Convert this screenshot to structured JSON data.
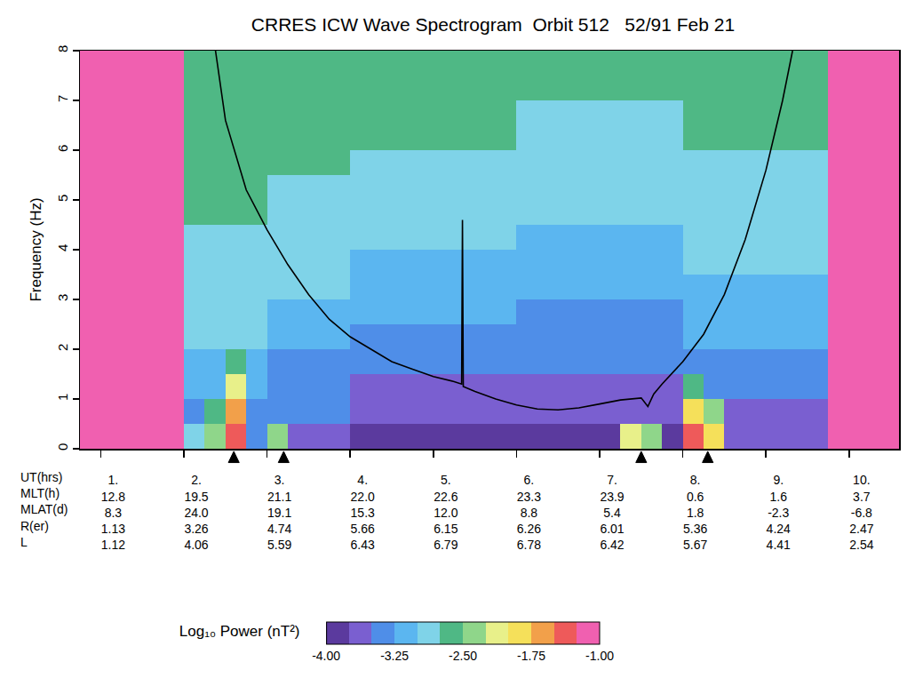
{
  "chart_data": {
    "type": "heatmap",
    "title": "CRRES ICW Wave Spectrogram  Orbit 512   52/91 Feb 21",
    "y_label": "Frequency (Hz)",
    "x": [
      0.875,
      1.125,
      1.375,
      1.625,
      1.875,
      2.125,
      2.375,
      2.625,
      2.875,
      3.125,
      3.375,
      3.625,
      3.875,
      4.125,
      4.375,
      4.625,
      4.875,
      5.125,
      5.375,
      5.625,
      5.875,
      6.125,
      6.375,
      6.625,
      6.875,
      7.125,
      7.375,
      7.625,
      7.875,
      8.125,
      8.375,
      8.625,
      8.875,
      9.125,
      9.375,
      9.625,
      9.875,
      10.125,
      10.375,
      10.625
    ],
    "y": [
      0.25,
      0.75,
      1.25,
      1.75,
      2.25,
      2.75,
      3.25,
      3.75,
      4.25,
      4.75,
      5.25,
      5.75,
      6.25,
      6.75,
      7.25,
      7.75
    ],
    "cells": [
      [
        -1,
        -1,
        -1,
        -1,
        -1,
        -2.8,
        -2.4,
        -1.4,
        -3.4,
        -2.5,
        -3.6,
        -3.6,
        -3.6,
        -3.8,
        -3.8,
        -3.8,
        -3.8,
        -3.8,
        -3.8,
        -3.8,
        -3.8,
        -3.85,
        -3.85,
        -3.85,
        -3.85,
        -3.85,
        -2.2,
        -2.5,
        -3.85,
        -1.5,
        -2.0,
        -3.7,
        -3.7,
        -3.7,
        -3.7,
        -3.7,
        -1,
        -1,
        -1,
        -1
      ],
      [
        -1,
        -1,
        -1,
        -1,
        -1,
        -3.3,
        -2.6,
        -1.6,
        -3.3,
        -3.5,
        -3.5,
        -3.5,
        -3.5,
        -3.7,
        -3.7,
        -3.7,
        -3.7,
        -3.7,
        -3.7,
        -3.7,
        -3.7,
        -3.75,
        -3.75,
        -3.75,
        -3.75,
        -3.75,
        -3.75,
        -3.75,
        -3.75,
        -1.9,
        -2.4,
        -3.55,
        -3.55,
        -3.55,
        -3.55,
        -3.55,
        -1,
        -1,
        -1,
        -1
      ],
      [
        -1,
        -1,
        -1,
        -1,
        -1,
        -3.2,
        -3.2,
        -2.2,
        -3.2,
        -3.4,
        -3.4,
        -3.4,
        -3.4,
        -3.6,
        -3.6,
        -3.6,
        -3.6,
        -3.6,
        -3.6,
        -3.6,
        -3.6,
        -3.65,
        -3.65,
        -3.65,
        -3.65,
        -3.65,
        -3.65,
        -3.65,
        -3.65,
        -2.6,
        -3.45,
        -3.45,
        -3.45,
        -3.45,
        -3.45,
        -3.45,
        -1,
        -1,
        -1,
        -1
      ],
      [
        -1,
        -1,
        -1,
        -1,
        -1,
        -3.1,
        -3.1,
        -2.6,
        -3.1,
        -3.3,
        -3.3,
        -3.3,
        -3.3,
        -3.5,
        -3.5,
        -3.5,
        -3.5,
        -3.5,
        -3.5,
        -3.5,
        -3.5,
        -3.5,
        -3.5,
        -3.5,
        -3.5,
        -3.5,
        -3.5,
        -3.5,
        -3.5,
        -3.35,
        -3.35,
        -3.35,
        -3.35,
        -3.35,
        -3.35,
        -3.35,
        -1,
        -1,
        -1,
        -1
      ],
      [
        -1,
        -1,
        -1,
        -1,
        -1,
        -3.0,
        -3.0,
        -3.0,
        -3.0,
        -3.2,
        -3.2,
        -3.2,
        -3.2,
        -3.35,
        -3.35,
        -3.35,
        -3.35,
        -3.35,
        -3.35,
        -3.35,
        -3.35,
        -3.4,
        -3.4,
        -3.4,
        -3.4,
        -3.4,
        -3.4,
        -3.4,
        -3.4,
        -3.25,
        -3.25,
        -3.25,
        -3.25,
        -3.25,
        -3.25,
        -3.25,
        -1,
        -1,
        -1,
        -1
      ],
      [
        -1,
        -1,
        -1,
        -1,
        -1,
        -2.95,
        -2.95,
        -2.95,
        -2.95,
        -3.1,
        -3.1,
        -3.1,
        -3.1,
        -3.25,
        -3.25,
        -3.25,
        -3.25,
        -3.25,
        -3.25,
        -3.25,
        -3.25,
        -3.3,
        -3.3,
        -3.3,
        -3.3,
        -3.3,
        -3.3,
        -3.3,
        -3.3,
        -3.15,
        -3.15,
        -3.15,
        -3.15,
        -3.15,
        -3.15,
        -3.15,
        -1,
        -1,
        -1,
        -1
      ],
      [
        -1,
        -1,
        -1,
        -1,
        -1,
        -2.9,
        -2.9,
        -2.9,
        -2.9,
        -3.0,
        -3.0,
        -3.0,
        -3.0,
        -3.15,
        -3.15,
        -3.15,
        -3.15,
        -3.15,
        -3.15,
        -3.15,
        -3.15,
        -3.2,
        -3.2,
        -3.2,
        -3.2,
        -3.2,
        -3.2,
        -3.2,
        -3.2,
        -3.1,
        -3.1,
        -3.1,
        -3.1,
        -3.1,
        -3.1,
        -3.1,
        -1,
        -1,
        -1,
        -1
      ],
      [
        -1,
        -1,
        -1,
        -1,
        -1,
        -2.85,
        -2.85,
        -2.85,
        -2.85,
        -2.95,
        -2.95,
        -2.95,
        -2.95,
        -3.05,
        -3.05,
        -3.05,
        -3.05,
        -3.05,
        -3.05,
        -3.05,
        -3.05,
        -3.1,
        -3.1,
        -3.1,
        -3.1,
        -3.1,
        -3.1,
        -3.1,
        -3.1,
        -3.0,
        -3.0,
        -3.0,
        -3.0,
        -3.0,
        -3.0,
        -3.0,
        -1,
        -1,
        -1,
        -1
      ],
      [
        -1,
        -1,
        -1,
        -1,
        -1,
        -2.8,
        -2.8,
        -2.8,
        -2.8,
        -2.9,
        -2.9,
        -2.9,
        -2.9,
        -3.0,
        -3.0,
        -3.0,
        -3.0,
        -3.0,
        -3.0,
        -3.0,
        -3.0,
        -3.05,
        -3.05,
        -3.05,
        -3.05,
        -3.05,
        -3.05,
        -3.05,
        -3.05,
        -2.95,
        -2.95,
        -2.95,
        -2.95,
        -2.95,
        -2.95,
        -2.95,
        -1,
        -1,
        -1,
        -1
      ],
      [
        -1,
        -1,
        -1,
        -1,
        -1,
        -2.75,
        -2.75,
        -2.75,
        -2.75,
        -2.85,
        -2.85,
        -2.85,
        -2.85,
        -2.9,
        -2.9,
        -2.9,
        -2.9,
        -2.9,
        -2.9,
        -2.9,
        -2.9,
        -3.0,
        -3.0,
        -3.0,
        -3.0,
        -3.0,
        -3.0,
        -3.0,
        -3.0,
        -2.9,
        -2.9,
        -2.9,
        -2.9,
        -2.9,
        -2.9,
        -2.9,
        -1,
        -1,
        -1,
        -1
      ],
      [
        -1,
        -1,
        -1,
        -1,
        -1,
        -2.7,
        -2.7,
        -2.7,
        -2.7,
        -2.8,
        -2.8,
        -2.8,
        -2.8,
        -2.85,
        -2.85,
        -2.85,
        -2.85,
        -2.85,
        -2.85,
        -2.85,
        -2.85,
        -2.95,
        -2.95,
        -2.95,
        -2.95,
        -2.95,
        -2.95,
        -2.95,
        -2.95,
        -2.85,
        -2.85,
        -2.85,
        -2.85,
        -2.85,
        -2.85,
        -2.85,
        -1,
        -1,
        -1,
        -1
      ],
      [
        -1,
        -1,
        -1,
        -1,
        -1,
        -2.65,
        -2.65,
        -2.65,
        -2.65,
        -2.75,
        -2.75,
        -2.75,
        -2.75,
        -2.8,
        -2.8,
        -2.8,
        -2.8,
        -2.8,
        -2.8,
        -2.8,
        -2.8,
        -2.9,
        -2.9,
        -2.9,
        -2.9,
        -2.9,
        -2.9,
        -2.9,
        -2.9,
        -2.8,
        -2.8,
        -2.8,
        -2.8,
        -2.8,
        -2.8,
        -2.8,
        -1,
        -1,
        -1,
        -1
      ],
      [
        -1,
        -1,
        -1,
        -1,
        -1,
        -2.6,
        -2.6,
        -2.6,
        -2.6,
        -2.7,
        -2.7,
        -2.7,
        -2.7,
        -2.75,
        -2.75,
        -2.75,
        -2.75,
        -2.75,
        -2.75,
        -2.75,
        -2.75,
        -2.85,
        -2.85,
        -2.85,
        -2.85,
        -2.85,
        -2.85,
        -2.85,
        -2.85,
        -2.75,
        -2.75,
        -2.75,
        -2.75,
        -2.75,
        -2.75,
        -2.75,
        -1,
        -1,
        -1,
        -1
      ],
      [
        -1,
        -1,
        -1,
        -1,
        -1,
        -2.6,
        -2.6,
        -2.6,
        -2.6,
        -2.65,
        -2.65,
        -2.65,
        -2.65,
        -2.7,
        -2.7,
        -2.7,
        -2.7,
        -2.7,
        -2.7,
        -2.7,
        -2.7,
        -2.8,
        -2.8,
        -2.8,
        -2.8,
        -2.8,
        -2.8,
        -2.8,
        -2.8,
        -2.7,
        -2.7,
        -2.7,
        -2.7,
        -2.7,
        -2.7,
        -2.7,
        -1,
        -1,
        -1,
        -1
      ],
      [
        -1,
        -1,
        -1,
        -1,
        -1,
        -2.55,
        -2.55,
        -2.55,
        -2.55,
        -2.6,
        -2.6,
        -2.6,
        -2.6,
        -2.65,
        -2.65,
        -2.65,
        -2.65,
        -2.65,
        -2.65,
        -2.65,
        -2.65,
        -2.75,
        -2.75,
        -2.75,
        -2.75,
        -2.75,
        -2.75,
        -2.75,
        -2.75,
        -2.65,
        -2.65,
        -2.65,
        -2.65,
        -2.65,
        -2.65,
        -2.65,
        -1,
        -1,
        -1,
        -1
      ],
      [
        -1,
        -1,
        -1,
        -1,
        -1,
        -2.55,
        -2.55,
        -2.55,
        -2.55,
        -2.6,
        -2.6,
        -2.6,
        -2.6,
        -2.6,
        -2.6,
        -2.6,
        -2.6,
        -2.6,
        -2.6,
        -2.6,
        -2.6,
        -2.7,
        -2.7,
        -2.7,
        -2.7,
        -2.7,
        -2.7,
        -2.7,
        -2.7,
        -2.6,
        -2.6,
        -2.6,
        -2.6,
        -2.6,
        -2.6,
        -2.6,
        -1,
        -1,
        -1,
        -1
      ]
    ],
    "xlim": [
      0.75,
      10.6
    ],
    "x_row_label": "UT(hrs)",
    "xticks": [
      {
        "value": 1,
        "label": "1."
      },
      {
        "value": 2,
        "label": "2."
      },
      {
        "value": 3,
        "label": "3."
      },
      {
        "value": 4,
        "label": "4."
      },
      {
        "value": 5,
        "label": "5."
      },
      {
        "value": 6,
        "label": "6."
      },
      {
        "value": 7,
        "label": "7."
      },
      {
        "value": 8,
        "label": "8."
      },
      {
        "value": 9,
        "label": "9."
      },
      {
        "value": 10,
        "label": "10."
      }
    ],
    "ephemeris": [
      {
        "name": "MLT(h)",
        "values": [
          "12.8",
          "19.5",
          "21.1",
          "22.0",
          "22.6",
          "23.3",
          "23.9",
          "0.6",
          "1.6",
          "3.7"
        ]
      },
      {
        "name": "MLAT(d)",
        "values": [
          "8.3",
          "24.0",
          "19.1",
          "15.3",
          "12.0",
          "8.8",
          "5.4",
          "1.8",
          "-2.3",
          "-6.8"
        ]
      },
      {
        "name": "R(er)",
        "values": [
          "1.13",
          "3.26",
          "4.74",
          "5.66",
          "6.15",
          "6.26",
          "6.01",
          "5.36",
          "4.24",
          "2.47"
        ]
      },
      {
        "name": "L",
        "values": [
          "1.12",
          "4.06",
          "5.59",
          "6.43",
          "6.79",
          "6.78",
          "6.42",
          "5.67",
          "4.41",
          "2.54"
        ]
      }
    ],
    "ylim": [
      0,
      8
    ],
    "yticks": [
      0,
      1,
      2,
      3,
      4,
      5,
      6,
      7,
      8
    ],
    "series": [
      {
        "type": "line",
        "color": "#000000",
        "x": [
          2.38,
          2.5,
          2.75,
          3.0,
          3.25,
          3.5,
          3.75,
          4.0,
          4.25,
          4.5,
          4.75,
          5.0,
          5.25,
          5.34,
          5.35,
          5.36,
          5.5,
          5.75,
          6.0,
          6.25,
          6.5,
          6.75,
          7.0,
          7.25,
          7.5,
          7.58,
          7.65,
          7.75,
          8.0,
          8.25,
          8.5,
          8.75,
          9.0,
          9.2,
          9.32
        ],
        "values": [
          8.0,
          6.6,
          5.2,
          4.4,
          3.7,
          3.1,
          2.6,
          2.25,
          2.0,
          1.75,
          1.6,
          1.45,
          1.35,
          1.3,
          4.6,
          1.25,
          1.15,
          1.0,
          0.88,
          0.8,
          0.78,
          0.82,
          0.9,
          0.98,
          1.02,
          0.85,
          1.1,
          1.3,
          1.75,
          2.3,
          3.1,
          4.2,
          5.6,
          7.0,
          8.0
        ]
      }
    ],
    "event_markers": [
      2.6,
      3.2,
      7.5,
      8.3
    ],
    "colorbar": {
      "title": "Log₁₀ Power (nT²)",
      "range": [
        -4,
        -1
      ],
      "ticks": [
        {
          "value": -4,
          "label": "-4.00"
        },
        {
          "value": -3.25,
          "label": "-3.25"
        },
        {
          "value": -2.5,
          "label": "-2.50"
        },
        {
          "value": -1.75,
          "label": "-1.75"
        },
        {
          "value": -1,
          "label": "-1.00"
        }
      ],
      "colors": [
        "#5b3a9e",
        "#7a5fd0",
        "#4f8ee8",
        "#5bb6f0",
        "#7fd3e8",
        "#4fb885",
        "#8fd68a",
        "#e8f08a",
        "#f5e05a",
        "#f2a04a",
        "#ee5a5a",
        "#f060b0"
      ]
    }
  }
}
